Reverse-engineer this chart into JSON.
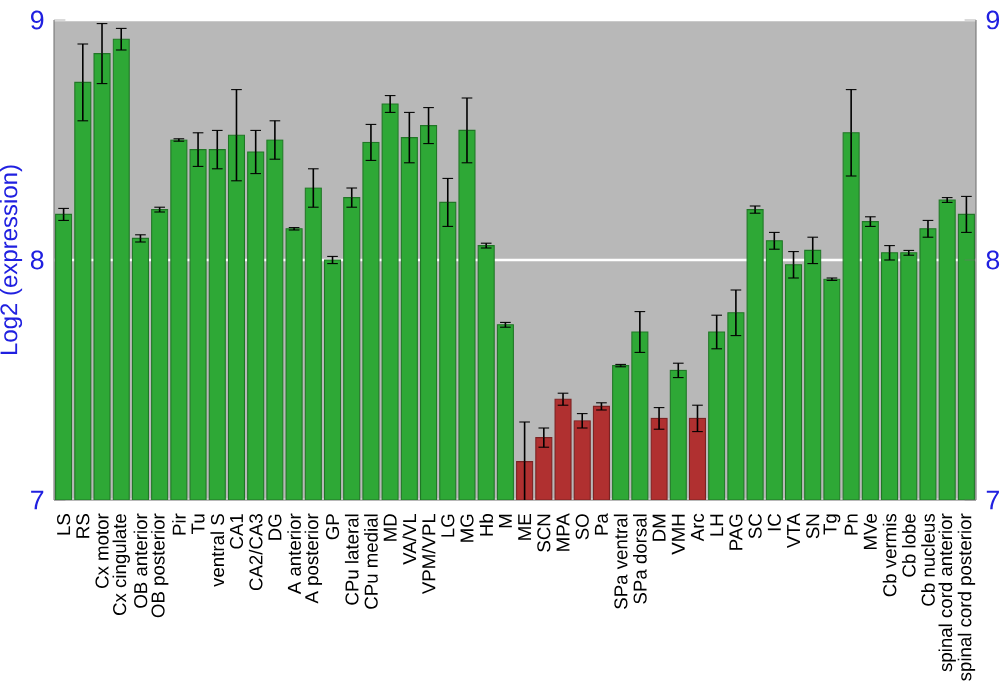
{
  "chart_data": {
    "type": "bar",
    "ylabel": "Log2 (expression)",
    "categories": [
      "LS",
      "RS",
      "Cx motor",
      "Cx cingulate",
      "OB anterior",
      "OB posterior",
      "Pir",
      "Tu",
      "ventral S",
      "CA1",
      "CA2/CA3",
      "DG",
      "A anterior",
      "A posterior",
      "GP",
      "CPu lateral",
      "CPu medial",
      "MD",
      "VA/VL",
      "VPM/VPL",
      "LG",
      "MG",
      "Hb",
      "M",
      "ME",
      "SCN",
      "MPA",
      "SO",
      "Pa",
      "SPa ventral",
      "SPa dorsal",
      "DM",
      "VMH",
      "Arc",
      "LH",
      "PAG",
      "SC",
      "IC",
      "VTA",
      "SN",
      "Tg",
      "Pn",
      "MVe",
      "Cb vermis",
      "Cb lobe",
      "Cb nucleus",
      "spinal cord anterior",
      "spinal cord posterior"
    ],
    "values": [
      8.19,
      8.74,
      8.86,
      8.92,
      8.09,
      8.21,
      8.5,
      8.46,
      8.46,
      8.52,
      8.45,
      8.5,
      8.13,
      8.3,
      8.0,
      8.26,
      8.49,
      8.65,
      8.51,
      8.56,
      8.24,
      8.54,
      8.06,
      7.73,
      7.16,
      7.26,
      7.42,
      7.33,
      7.39,
      7.56,
      7.7,
      7.34,
      7.54,
      7.34,
      7.7,
      7.78,
      8.21,
      8.08,
      7.98,
      8.04,
      7.92,
      8.53,
      8.16,
      8.03,
      8.03,
      8.13,
      8.25,
      8.19
    ],
    "errors": [
      0.025,
      0.16,
      0.125,
      0.045,
      0.015,
      0.01,
      0.005,
      0.07,
      0.08,
      0.19,
      0.09,
      0.08,
      0.005,
      0.08,
      0.015,
      0.04,
      0.075,
      0.035,
      0.105,
      0.075,
      0.1,
      0.135,
      0.01,
      0.01,
      0.165,
      0.04,
      0.025,
      0.03,
      0.015,
      0.005,
      0.085,
      0.045,
      0.03,
      0.055,
      0.07,
      0.095,
      0.015,
      0.035,
      0.055,
      0.055,
      0.005,
      0.18,
      0.02,
      0.03,
      0.01,
      0.035,
      0.01,
      0.075
    ],
    "colors": [
      "#2ea836",
      "#2ea836",
      "#2ea836",
      "#2ea836",
      "#2ea836",
      "#2ea836",
      "#2ea836",
      "#2ea836",
      "#2ea836",
      "#2ea836",
      "#2ea836",
      "#2ea836",
      "#2ea836",
      "#2ea836",
      "#2ea836",
      "#2ea836",
      "#2ea836",
      "#2ea836",
      "#2ea836",
      "#2ea836",
      "#2ea836",
      "#2ea836",
      "#2ea836",
      "#2ea836",
      "#b03030",
      "#b03030",
      "#b03030",
      "#b03030",
      "#b03030",
      "#2ea836",
      "#2ea836",
      "#b03030",
      "#2ea836",
      "#b03030",
      "#2ea836",
      "#2ea836",
      "#2ea836",
      "#2ea836",
      "#2ea836",
      "#2ea836",
      "#2ea836",
      "#2ea836",
      "#2ea836",
      "#2ea836",
      "#2ea836",
      "#2ea836",
      "#2ea836",
      "#2ea836"
    ],
    "ylim": [
      7,
      9
    ],
    "yticks": [
      7,
      8,
      9
    ],
    "y2lim": [
      7,
      9
    ],
    "y2ticks": [
      7,
      8,
      9
    ],
    "grid": "y"
  }
}
